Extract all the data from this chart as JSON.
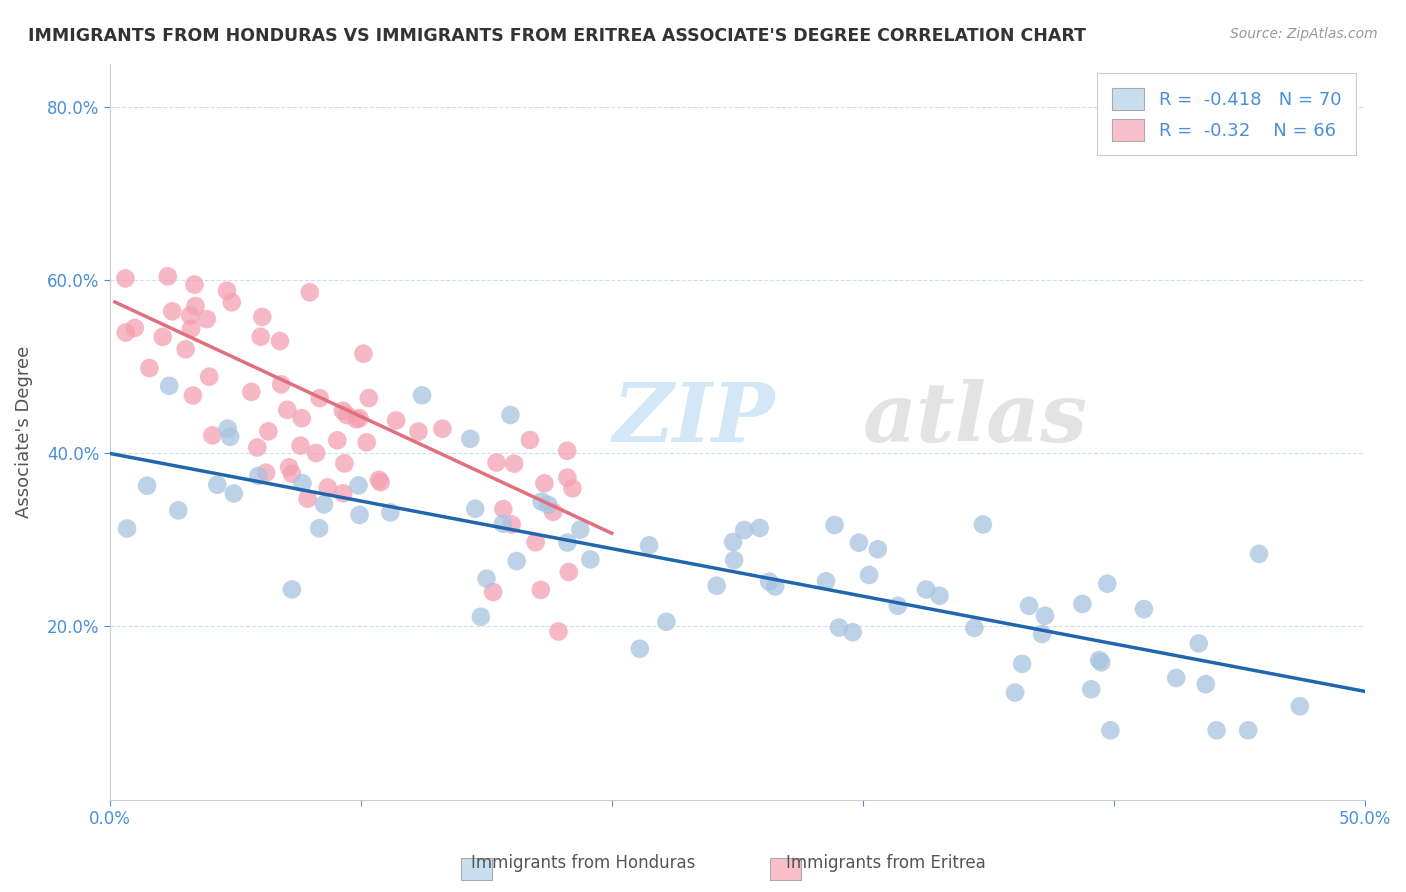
{
  "title": "IMMIGRANTS FROM HONDURAS VS IMMIGRANTS FROM ERITREA ASSOCIATE'S DEGREE CORRELATION CHART",
  "source": "Source: ZipAtlas.com",
  "ylabel": "Associate's Degree",
  "watermark_zip": "ZIP",
  "watermark_atlas": "atlas",
  "xlim": [
    0.0,
    0.5
  ],
  "ylim": [
    0.0,
    0.85
  ],
  "yticks": [
    0.2,
    0.4,
    0.6,
    0.8
  ],
  "ytick_labels": [
    "20.0%",
    "40.0%",
    "60.0%",
    "80.0%"
  ],
  "xticks": [
    0.0,
    0.1,
    0.2,
    0.3,
    0.4,
    0.5
  ],
  "xtick_labels": [
    "0.0%",
    "",
    "",
    "",
    "",
    "50.0%"
  ],
  "honduras_color": "#a8c4e0",
  "eritrea_color": "#f4a0b0",
  "honduras_line_color": "#2166ac",
  "eritrea_line_color": "#e07080",
  "legend_box_color": "#c8dff0",
  "legend_box_color2": "#f9c0cc",
  "R_honduras": -0.418,
  "N_honduras": 70,
  "R_eritrea": -0.32,
  "N_eritrea": 66
}
